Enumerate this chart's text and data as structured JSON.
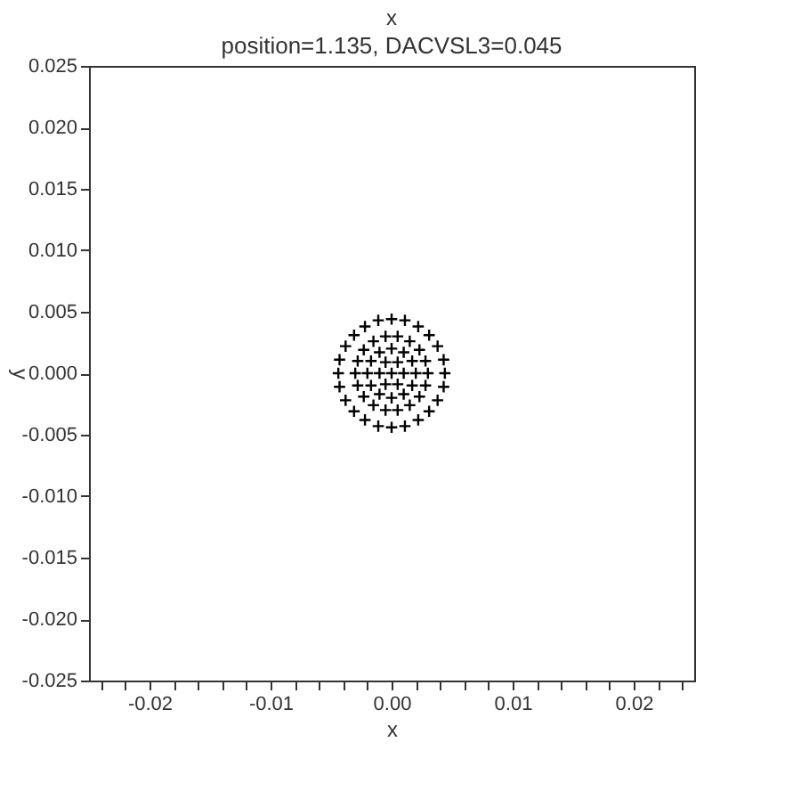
{
  "chart_data": {
    "type": "scatter",
    "title": "position=1.135, DACVSL3=0.045",
    "xlabel": "x",
    "ylabel": "y",
    "annotations": [
      "x"
    ],
    "marker": "cross",
    "grid": false,
    "series": [
      {
        "color": "#000000",
        "x": [
          0,
          0.001,
          0.0005,
          -0.0005,
          -0.001,
          -0.0005,
          0.0005,
          0.002,
          0.0017,
          0.001,
          0,
          -0.001,
          -0.0017,
          -0.002,
          -0.0017,
          -0.001,
          0,
          0.001,
          0.0017,
          0.003,
          0.0028,
          0.0023,
          0.0015,
          0.0005,
          -0.0005,
          -0.0015,
          -0.0023,
          -0.0028,
          -0.003,
          -0.0028,
          -0.0023,
          -0.0015,
          -0.0005,
          0.0005,
          0.0015,
          0.0023,
          0.0028,
          0.0044,
          0.0043,
          0.0038,
          0.0031,
          0.0022,
          0.0011,
          0,
          -0.0011,
          -0.0022,
          -0.0031,
          -0.0038,
          -0.0043,
          -0.0044,
          -0.0043,
          -0.0038,
          -0.0031,
          -0.0022,
          -0.0011,
          0,
          0.0011,
          0.0022,
          0.0031,
          0.0038,
          0.0043
        ],
        "values": [
          0,
          0,
          0.0009,
          0.0009,
          0,
          -0.0009,
          -0.0009,
          0,
          0.001,
          0.0017,
          0.002,
          0.0017,
          0.001,
          0,
          -0.001,
          -0.0017,
          -0.002,
          -0.0017,
          -0.001,
          0,
          0.001,
          0.0019,
          0.0026,
          0.003,
          0.003,
          0.0026,
          0.0019,
          0.001,
          0,
          -0.001,
          -0.0019,
          -0.0026,
          -0.003,
          -0.003,
          -0.0026,
          -0.0019,
          -0.001,
          0,
          0.0011,
          0.0022,
          0.0031,
          0.0038,
          0.0043,
          0.0044,
          0.0043,
          0.0038,
          0.0031,
          0.0022,
          0.0011,
          0,
          -0.0011,
          -0.0022,
          -0.0031,
          -0.0038,
          -0.0043,
          -0.0044,
          -0.0043,
          -0.0038,
          -0.0031,
          -0.0022,
          -0.0011
        ]
      }
    ],
    "xlim": [
      -0.025,
      0.025
    ],
    "xticks": [
      {
        "value": -0.024,
        "label": null
      },
      {
        "value": -0.022,
        "label": null
      },
      {
        "value": -0.02,
        "label": "-0.02"
      },
      {
        "value": -0.018,
        "label": null
      },
      {
        "value": -0.016,
        "label": null
      },
      {
        "value": -0.014,
        "label": null
      },
      {
        "value": -0.012,
        "label": null
      },
      {
        "value": -0.01,
        "label": "-0.01"
      },
      {
        "value": -0.008,
        "label": null
      },
      {
        "value": -0.006,
        "label": null
      },
      {
        "value": -0.004,
        "label": null
      },
      {
        "value": -0.002,
        "label": null
      },
      {
        "value": 0,
        "label": "0.00"
      },
      {
        "value": 0.002,
        "label": null
      },
      {
        "value": 0.004,
        "label": null
      },
      {
        "value": 0.006,
        "label": null
      },
      {
        "value": 0.008,
        "label": null
      },
      {
        "value": 0.01,
        "label": "0.01"
      },
      {
        "value": 0.012,
        "label": null
      },
      {
        "value": 0.014,
        "label": null
      },
      {
        "value": 0.016,
        "label": null
      },
      {
        "value": 0.018,
        "label": null
      },
      {
        "value": 0.02,
        "label": "0.02"
      },
      {
        "value": 0.022,
        "label": null
      },
      {
        "value": 0.024,
        "label": null
      }
    ],
    "ylim": [
      -0.025,
      0.025
    ],
    "yticks": [
      {
        "value": 0.025,
        "label": "0.025"
      },
      {
        "value": 0.02,
        "label": "0.020"
      },
      {
        "value": 0.015,
        "label": "0.015"
      },
      {
        "value": 0.01,
        "label": "0.010"
      },
      {
        "value": 0.005,
        "label": "0.005"
      },
      {
        "value": 0,
        "label": "0.000"
      },
      {
        "value": -0.005,
        "label": "-0.005"
      },
      {
        "value": -0.01,
        "label": "-0.010"
      },
      {
        "value": -0.015,
        "label": "-0.015"
      },
      {
        "value": -0.02,
        "label": "-0.020"
      },
      {
        "value": -0.025,
        "label": "-0.025"
      }
    ]
  }
}
